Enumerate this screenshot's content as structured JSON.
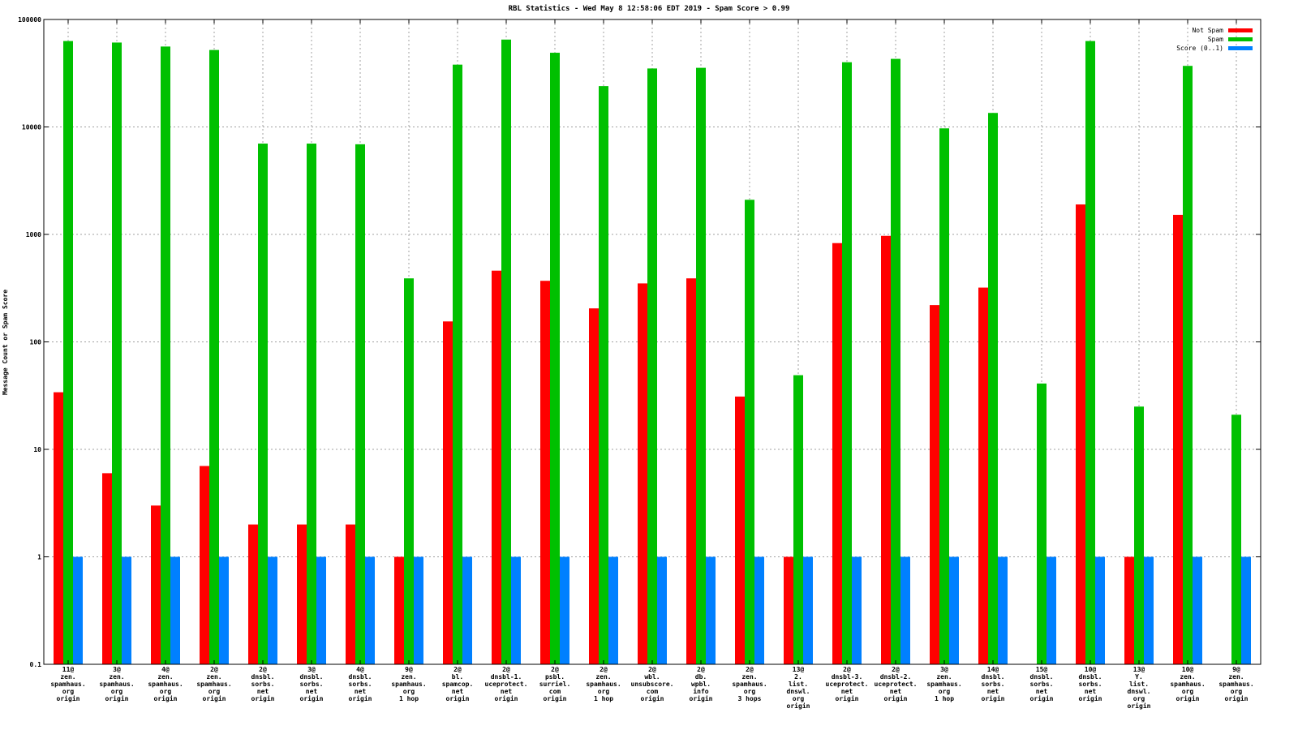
{
  "chart_data": {
    "type": "bar",
    "title": "RBL Statistics - Wed May  8 12:58:06 EDT 2019 - Spam Score > 0.99",
    "xlabel": "",
    "ylabel": "Message Count or Spam Score",
    "yscale": "log",
    "ylim": [
      0.1,
      100000
    ],
    "yticks": [
      "0.1",
      "1",
      "10",
      "100",
      "1000",
      "10000",
      "100000"
    ],
    "grid": true,
    "legend_position": "top-right",
    "categories": [
      [
        "11@",
        "zen.",
        "spamhaus.",
        "org",
        "origin"
      ],
      [
        "3@",
        "zen.",
        "spamhaus.",
        "org",
        "origin"
      ],
      [
        "4@",
        "zen.",
        "spamhaus.",
        "org",
        "origin"
      ],
      [
        "2@",
        "zen.",
        "spamhaus.",
        "org",
        "origin"
      ],
      [
        "2@",
        "dnsbl.",
        "sorbs.",
        "net",
        "origin"
      ],
      [
        "3@",
        "dnsbl.",
        "sorbs.",
        "net",
        "origin"
      ],
      [
        "4@",
        "dnsbl.",
        "sorbs.",
        "net",
        "origin"
      ],
      [
        "9@",
        "zen.",
        "spamhaus.",
        "org",
        "1 hop"
      ],
      [
        "2@",
        "bl.",
        "spamcop.",
        "net",
        "origin"
      ],
      [
        "2@",
        "dnsbl-1.",
        "uceprotect.",
        "net",
        "origin"
      ],
      [
        "2@",
        "psbl.",
        "surriel.",
        "com",
        "origin"
      ],
      [
        "2@",
        "zen.",
        "spamhaus.",
        "org",
        "1 hop"
      ],
      [
        "2@",
        "wbl.",
        "unsubscore.",
        "com",
        "origin"
      ],
      [
        "2@",
        "db.",
        "wpbl.",
        "info",
        "origin"
      ],
      [
        "2@",
        "zen.",
        "spamhaus.",
        "org",
        "3 hops"
      ],
      [
        "13@",
        "2.",
        "list.",
        "dnswl.",
        "org",
        "origin"
      ],
      [
        "2@",
        "dnsbl-3.",
        "uceprotect.",
        "net",
        "origin"
      ],
      [
        "2@",
        "dnsbl-2.",
        "uceprotect.",
        "net",
        "origin"
      ],
      [
        "3@",
        "zen.",
        "spamhaus.",
        "org",
        "1 hop"
      ],
      [
        "14@",
        "dnsbl.",
        "sorbs.",
        "net",
        "origin"
      ],
      [
        "15@",
        "dnsbl.",
        "sorbs.",
        "net",
        "origin"
      ],
      [
        "10@",
        "dnsbl.",
        "sorbs.",
        "net",
        "origin"
      ],
      [
        "13@",
        "Y.",
        "list.",
        "dnswl.",
        "org",
        "origin"
      ],
      [
        "10@",
        "zen.",
        "spamhaus.",
        "org",
        "origin"
      ],
      [
        "9@",
        "zen.",
        "spamhaus.",
        "org",
        "origin"
      ]
    ],
    "series": [
      {
        "name": "Not Spam",
        "color": "#ff0000",
        "values": [
          34,
          6,
          3,
          7,
          2,
          2,
          2,
          1,
          155,
          460,
          370,
          205,
          350,
          390,
          31,
          1,
          830,
          970,
          220,
          320,
          null,
          1900,
          1,
          1520,
          null
        ]
      },
      {
        "name": "Spam",
        "color": "#00c000",
        "values": [
          63000,
          61000,
          56000,
          52000,
          7000,
          7000,
          6900,
          390,
          38000,
          65000,
          49000,
          24000,
          35000,
          35500,
          2100,
          49,
          40000,
          43000,
          9700,
          13500,
          41,
          63000,
          25,
          37000,
          21
        ]
      },
      {
        "name": "Score (0..1)",
        "color": "#0080ff",
        "values": [
          1,
          1,
          1,
          1,
          1,
          1,
          1,
          1,
          1,
          1,
          1,
          1,
          1,
          1,
          1,
          1,
          1,
          1,
          1,
          1,
          1,
          1,
          1,
          1,
          1
        ]
      }
    ]
  }
}
